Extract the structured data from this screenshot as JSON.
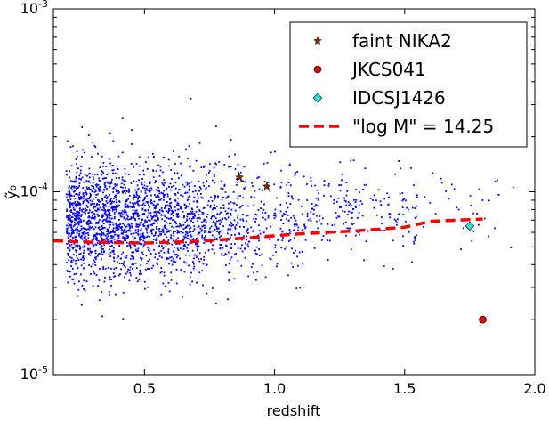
{
  "chart_data": {
    "type": "scatter",
    "title": "",
    "xlabel": "redshift",
    "ylabel": "ỹ₀",
    "xlim": [
      0.15,
      2.0
    ],
    "ylim": [
      1e-05,
      0.001
    ],
    "yscale": "log",
    "x_ticks": [
      0.5,
      1.0,
      1.5,
      2.0
    ],
    "x_tick_labels": [
      "0.5",
      "1.0",
      "1.5",
      "2.0"
    ],
    "y_ticks": [
      1e-05,
      0.0001,
      0.001
    ],
    "y_tick_labels": [
      {
        "base": "10",
        "exp": "-5"
      },
      {
        "base": "10",
        "exp": "-4"
      },
      {
        "base": "10",
        "exp": "-3"
      }
    ],
    "grid": false,
    "legend_position": "top-right",
    "background_cloud": {
      "color": "#0000ff",
      "description_points": 2500,
      "x_range": [
        0.15,
        1.92
      ],
      "y_center": 7e-05
    },
    "series": [
      {
        "name": "faint NIKA2",
        "marker": "star",
        "color": "#8b2500",
        "x": [
          0.865,
          0.97
        ],
        "y": [
          0.00012,
          0.000107
        ]
      },
      {
        "name": "JKCS041",
        "marker": "circle",
        "color": "#dd0000",
        "x": [
          1.8
        ],
        "y": [
          2e-05
        ]
      },
      {
        "name": "IDCSJ1426",
        "marker": "diamond",
        "color": "#33dddd",
        "x": [
          1.75
        ],
        "y": [
          6.5e-05
        ]
      },
      {
        "name": "\"log M\" = 14.25",
        "marker": "dashed-line",
        "color": "#ff0000",
        "x": [
          0.15,
          0.3,
          0.5,
          0.7,
          0.9,
          1.1,
          1.3,
          1.5,
          1.6,
          1.8
        ],
        "y": [
          5.4e-05,
          5.3e-05,
          5.25e-05,
          5.35e-05,
          5.6e-05,
          5.9e-05,
          6.1e-05,
          6.4e-05,
          6.9e-05,
          7.1e-05
        ]
      }
    ]
  }
}
